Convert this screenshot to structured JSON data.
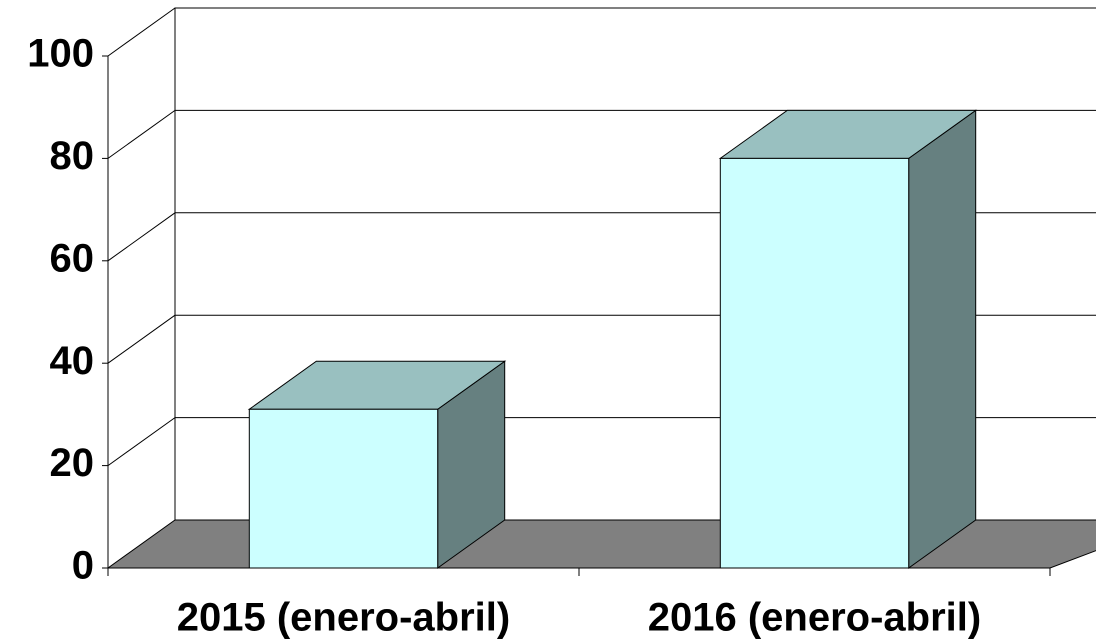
{
  "chart_data": {
    "type": "bar3d",
    "categories": [
      "2015 (enero-abril)",
      "2016 (enero-abril)"
    ],
    "values": [
      31,
      80
    ],
    "color": "#ccffff",
    "top_color": "#99c0c0",
    "side_color": "#668080",
    "floor_color": "#808080",
    "ylim": [
      0,
      100
    ],
    "yticks": [
      0,
      20,
      40,
      60,
      80,
      100
    ],
    "grid": true
  }
}
